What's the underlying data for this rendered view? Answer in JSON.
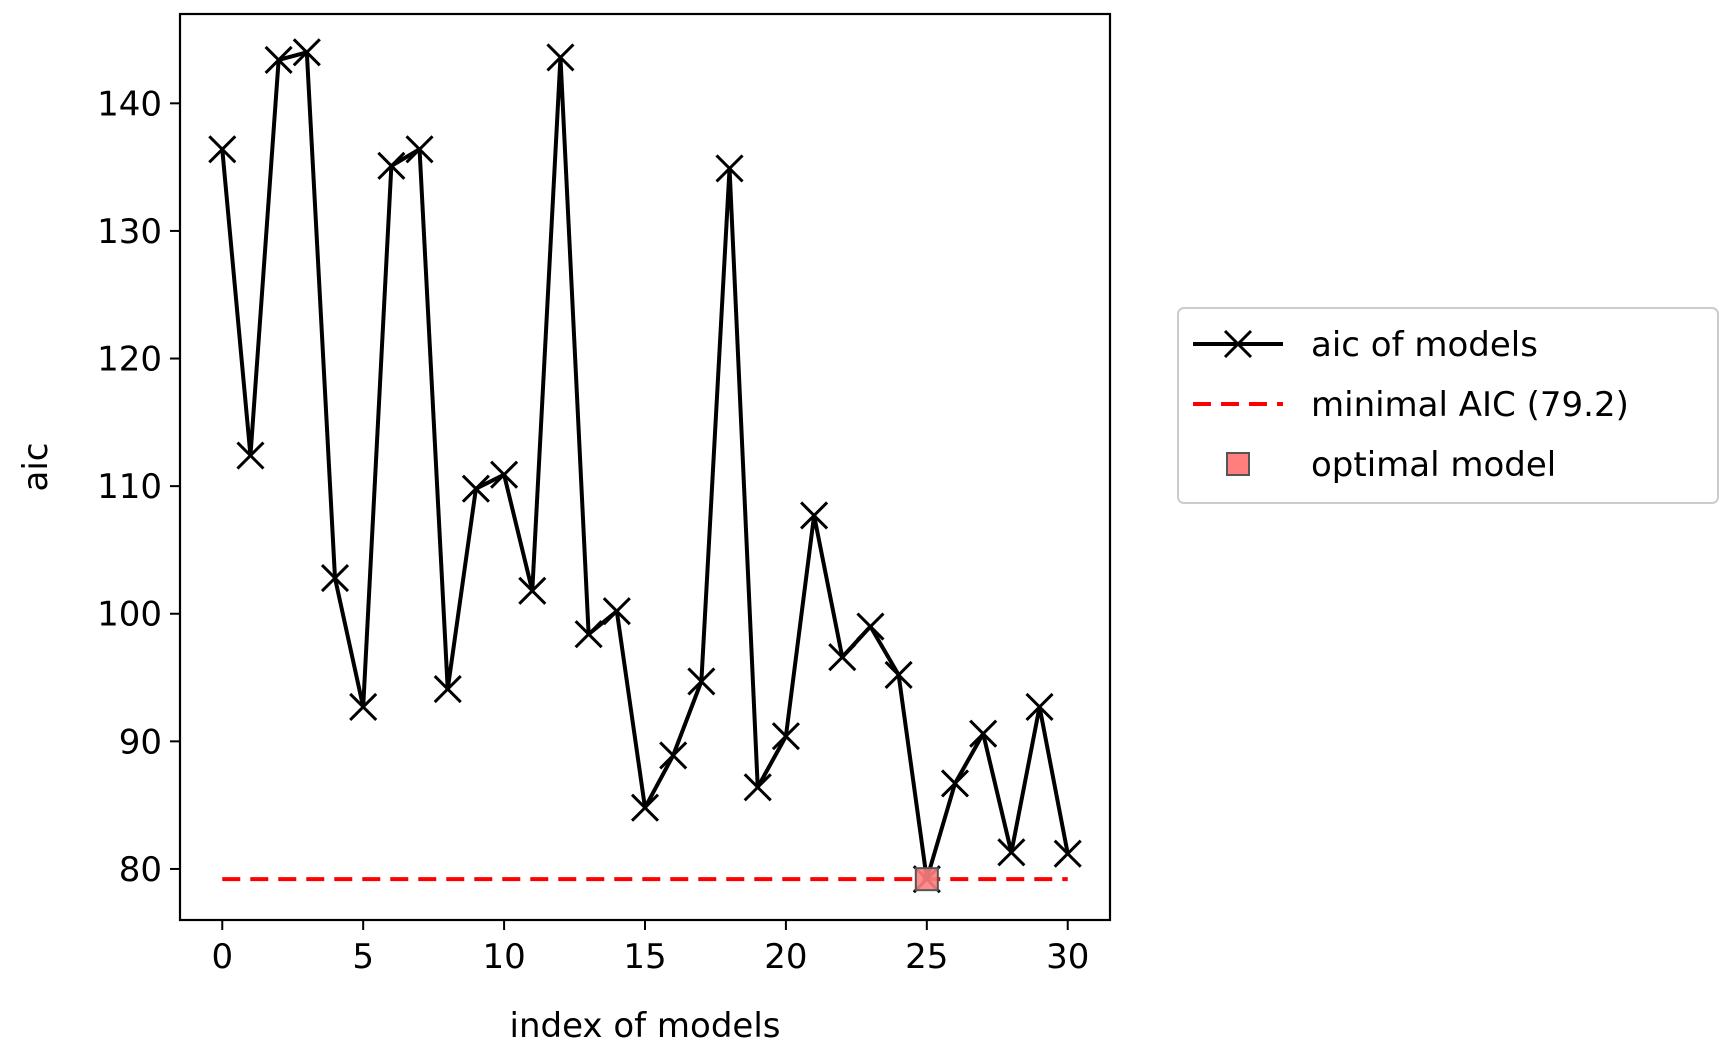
{
  "chart_data": {
    "type": "line",
    "xlabel": "index of models",
    "ylabel": "aic",
    "xlim": [
      -1.5,
      31.5
    ],
    "ylim": [
      76,
      147
    ],
    "x_ticks": [
      0,
      5,
      10,
      15,
      20,
      25,
      30
    ],
    "y_ticks": [
      80,
      90,
      100,
      110,
      120,
      130,
      140
    ],
    "grid": false,
    "legend_placement": "outside-right",
    "series": [
      {
        "name": "aic of models",
        "color": "#000000",
        "marker": "x",
        "x": [
          0,
          1,
          2,
          3,
          4,
          5,
          6,
          7,
          8,
          9,
          10,
          11,
          12,
          13,
          14,
          15,
          16,
          17,
          18,
          19,
          20,
          21,
          22,
          23,
          24,
          25,
          26,
          27,
          28,
          29,
          30
        ],
        "y": [
          136.4,
          112.4,
          143.4,
          144.0,
          102.8,
          92.7,
          135.1,
          136.4,
          94.1,
          109.8,
          110.9,
          101.8,
          143.6,
          98.4,
          100.2,
          84.8,
          88.9,
          94.7,
          134.9,
          86.4,
          90.4,
          107.7,
          96.6,
          99.0,
          95.2,
          79.2,
          86.7,
          90.6,
          81.3,
          92.7,
          81.2
        ]
      },
      {
        "name": "minimal AIC (79.2)",
        "color": "#ff0000",
        "style": "dashed",
        "x": [
          0,
          30
        ],
        "y": [
          79.2,
          79.2
        ]
      },
      {
        "name": "optimal model",
        "color": "#ff7f7f",
        "marker": "square",
        "x": [
          25
        ],
        "y": [
          79.2
        ]
      }
    ]
  }
}
